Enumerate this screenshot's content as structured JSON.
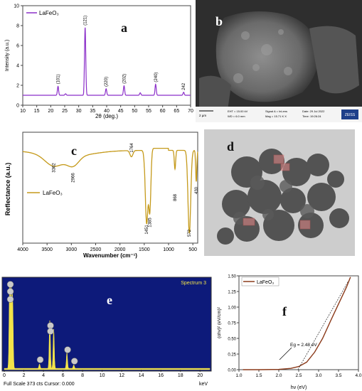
{
  "chart_data": [
    {
      "id": "a",
      "type": "line",
      "panel_label": "a",
      "legend": "LaFeO₃",
      "xlabel": "2θ (deg.)",
      "ylabel": "Intensity (a.u.)",
      "xlim": [
        10,
        70
      ],
      "ylim": [
        0,
        10
      ],
      "xticks": [
        "10",
        "15",
        "20",
        "25",
        "30",
        "35",
        "40",
        "45",
        "50",
        "55",
        "60",
        "65",
        "70"
      ],
      "yticks": [
        "0",
        "2",
        "4",
        "6",
        "8",
        "10"
      ],
      "color": "#8b2fc9",
      "peaks": [
        {
          "x": 22.6,
          "y": 1.9,
          "label": "(101)"
        },
        {
          "x": 32.3,
          "y": 7.8,
          "label": "(121)"
        },
        {
          "x": 39.8,
          "y": 1.65,
          "label": "(220)"
        },
        {
          "x": 46.2,
          "y": 1.95,
          "label": "(202)"
        },
        {
          "x": 57.5,
          "y": 2.1,
          "label": "(240)"
        },
        {
          "x": 67.5,
          "y": 1.3,
          "label": "242"
        }
      ],
      "small_peaks": [
        {
          "x": 52.0,
          "y": 1.25
        },
        {
          "x": 25.3,
          "y": 1.15
        }
      ],
      "baseline": 1.0
    },
    {
      "id": "c",
      "type": "line",
      "panel_label": "c",
      "legend": "LaFeO₃",
      "xlabel": "Wavenumber (cm⁻¹)",
      "ylabel": "Reflectance (a.u.)",
      "xlim": [
        4000,
        400
      ],
      "xticks": [
        "4000",
        "3500",
        "3000",
        "2500",
        "2000",
        "1500",
        "1000",
        "500"
      ],
      "color": "#c59a1b",
      "annotations": [
        {
          "x": 3362,
          "label": "3362"
        },
        {
          "x": 2966,
          "label": "2966"
        },
        {
          "x": 1764,
          "label": "1764"
        },
        {
          "x": 1451,
          "label": "1451"
        },
        {
          "x": 1385,
          "label": "1385"
        },
        {
          "x": 868,
          "label": "868"
        },
        {
          "x": 572,
          "label": "572"
        },
        {
          "x": 430,
          "label": "430"
        }
      ]
    },
    {
      "id": "e",
      "type": "bar",
      "panel_label": "e",
      "spectrum_title": "Spectrum 3",
      "footer_left": "Full Scale 373 cts Cursor: 0.000",
      "footer_right": "keV",
      "xlim": [
        0,
        21
      ],
      "xticks": [
        "0",
        "2",
        "4",
        "6",
        "8",
        "10",
        "12",
        "14",
        "16",
        "18",
        "20"
      ],
      "peaks": [
        {
          "x": 0.55,
          "h": 0.98,
          "marker": "O"
        },
        {
          "x": 0.7,
          "h": 0.88,
          "marker": "Fe"
        },
        {
          "x": 0.85,
          "h": 0.8,
          "marker": "La"
        },
        {
          "x": 4.65,
          "h": 0.55,
          "marker": "La"
        },
        {
          "x": 5.05,
          "h": 0.45,
          "marker": "La"
        },
        {
          "x": 6.4,
          "h": 0.18,
          "marker": "Fe"
        },
        {
          "x": 3.6,
          "h": 0.05,
          "marker": "La"
        },
        {
          "x": 7.1,
          "h": 0.04,
          "marker": "Fe"
        }
      ]
    },
    {
      "id": "f",
      "type": "line",
      "panel_label": "f",
      "legend": "LaFeO₃",
      "xlabel": "hν (eV)",
      "ylabel": "(αhν)² (eV/cm)²",
      "xlim": [
        1.0,
        4.0
      ],
      "ylim": [
        0,
        1.5
      ],
      "xticks": [
        "1.0",
        "1.5",
        "2.0",
        "2.5",
        "3.0",
        "3.5",
        "4.0"
      ],
      "yticks": [
        "0.00",
        "0.25",
        "0.50",
        "0.75",
        "1.00",
        "1.25",
        "1.50"
      ],
      "annotation": "E<sub>g</sub> = 2.48 eV",
      "annotation_text": "Eg = 2.48 eV",
      "curve_x": [
        1.1,
        1.5,
        2.0,
        2.3,
        2.5,
        2.7,
        2.9,
        3.1,
        3.3,
        3.5,
        3.7,
        3.8
      ],
      "curve_y": [
        0.0,
        0.0,
        0.005,
        0.02,
        0.05,
        0.12,
        0.28,
        0.5,
        0.78,
        1.05,
        1.32,
        1.48
      ],
      "color": "#8b3a1a"
    }
  ],
  "sem": {
    "panel_label": "b",
    "meta": [
      "EHT = 15.00 kV",
      "WD = 6.0 mm",
      "Signal A = InLens",
      "Mag = 15.71 K X",
      "Date: 29 Jul 2022",
      "Time: 19:26:24"
    ],
    "scale": "2 µm",
    "logo": "ZEISS"
  },
  "tem": {
    "panel_label": "d"
  }
}
